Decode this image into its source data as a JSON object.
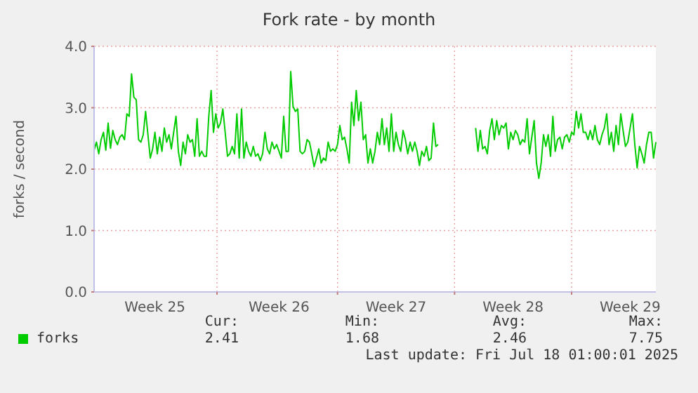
{
  "chart_data": {
    "type": "line",
    "title": "Fork rate - by month",
    "ylabel": "forks / second",
    "categories": [
      null,
      null,
      null,
      null,
      null,
      null,
      null,
      null,
      null,
      null,
      null,
      null,
      null,
      null,
      null,
      null,
      null,
      null,
      null,
      null,
      null,
      null,
      null,
      null,
      null,
      null,
      "Week 25",
      null,
      null,
      null,
      null,
      null,
      null,
      null,
      null,
      null,
      null,
      null,
      null,
      null,
      null,
      null,
      null,
      null,
      null,
      null,
      null,
      null,
      null,
      null,
      null,
      null,
      null,
      null,
      null,
      null,
      null,
      null,
      null,
      null,
      null,
      null,
      null,
      null,
      null,
      null,
      null,
      null,
      null,
      null,
      null,
      null,
      null,
      null,
      null,
      null,
      null,
      null,
      null,
      "Week 26",
      null,
      null,
      null,
      null,
      null,
      null,
      null,
      null,
      null,
      null,
      null,
      null,
      null,
      null,
      null,
      null,
      null,
      null,
      null,
      null,
      null,
      null,
      null,
      null,
      null,
      null,
      null,
      null,
      null,
      null,
      null,
      null,
      null,
      null,
      null,
      null,
      null,
      null,
      null,
      null,
      null,
      null,
      null,
      null,
      null,
      null,
      null,
      null,
      null,
      "Week 27",
      null,
      null,
      null,
      null,
      null,
      null,
      null,
      null,
      null,
      null,
      null,
      null,
      null,
      null,
      null,
      null,
      null,
      null,
      null,
      null,
      null,
      null,
      null,
      null,
      null,
      null,
      null,
      null,
      null,
      null,
      null,
      null,
      null,
      null,
      null,
      null,
      null,
      null,
      null,
      null,
      null,
      null,
      null,
      null,
      null,
      null,
      null,
      null,
      null,
      "Week 28",
      null,
      null,
      null,
      null,
      null,
      null,
      null,
      null,
      null,
      null,
      null,
      null,
      null,
      null,
      null,
      null,
      null,
      null,
      null,
      null,
      null,
      null,
      null,
      null,
      null,
      null,
      null,
      null,
      null,
      null,
      null,
      null,
      null,
      null,
      null,
      null,
      null,
      null,
      null,
      null,
      null,
      null,
      null,
      null,
      null,
      null,
      null,
      null,
      null,
      "Week 29",
      null,
      null,
      null,
      null,
      null,
      null,
      null,
      null,
      null,
      null,
      null
    ],
    "series": [
      {
        "name": "forks",
        "color": "#00cc00",
        "values": [
          2.31,
          2.44,
          2.25,
          2.48,
          2.6,
          2.31,
          2.75,
          2.34,
          2.63,
          2.48,
          2.4,
          2.52,
          2.56,
          2.48,
          2.9,
          2.86,
          3.55,
          3.17,
          3.13,
          2.48,
          2.44,
          2.56,
          2.94,
          2.56,
          2.18,
          2.33,
          2.6,
          2.25,
          2.52,
          2.29,
          2.67,
          2.44,
          2.56,
          2.33,
          2.6,
          2.86,
          2.29,
          2.06,
          2.44,
          2.25,
          2.56,
          2.44,
          2.48,
          2.21,
          2.82,
          2.21,
          2.29,
          2.21,
          2.21,
          2.86,
          3.28,
          2.6,
          2.9,
          2.67,
          2.75,
          2.98,
          2.6,
          2.21,
          2.25,
          2.37,
          2.25,
          2.9,
          2.18,
          2.98,
          2.18,
          2.44,
          2.29,
          2.21,
          2.37,
          2.21,
          2.25,
          2.14,
          2.25,
          2.6,
          2.33,
          2.25,
          2.44,
          2.33,
          2.4,
          2.29,
          2.18,
          2.86,
          2.29,
          2.29,
          3.59,
          3.02,
          2.94,
          2.98,
          2.29,
          2.25,
          2.29,
          2.48,
          2.44,
          2.25,
          2.04,
          2.18,
          2.33,
          2.1,
          2.18,
          2.14,
          2.44,
          2.29,
          2.33,
          2.29,
          2.4,
          2.71,
          2.48,
          2.52,
          2.33,
          2.1,
          3.09,
          2.71,
          3.28,
          2.79,
          3.09,
          2.48,
          2.56,
          2.1,
          2.33,
          2.1,
          2.29,
          2.6,
          2.4,
          2.82,
          2.4,
          2.67,
          2.29,
          2.9,
          2.29,
          2.6,
          2.4,
          2.29,
          2.63,
          2.48,
          2.25,
          2.44,
          2.29,
          2.44,
          2.29,
          2.06,
          2.29,
          2.21,
          2.37,
          2.14,
          2.18,
          2.75,
          2.37,
          2.4,
          null,
          null,
          null,
          null,
          null,
          null,
          null,
          null,
          null,
          null,
          null,
          null,
          null,
          null,
          null,
          2.67,
          2.29,
          2.63,
          2.33,
          2.37,
          2.25,
          2.63,
          2.82,
          2.48,
          2.79,
          2.56,
          2.71,
          2.67,
          2.75,
          2.33,
          2.6,
          2.48,
          2.63,
          2.56,
          2.4,
          2.48,
          2.44,
          2.82,
          2.25,
          2.52,
          2.79,
          2.1,
          1.85,
          2.1,
          2.56,
          2.37,
          2.56,
          2.21,
          2.86,
          2.29,
          2.48,
          2.52,
          2.33,
          2.52,
          2.56,
          2.44,
          2.6,
          2.56,
          2.94,
          2.67,
          2.9,
          2.6,
          2.6,
          2.48,
          2.63,
          2.48,
          2.71,
          2.48,
          2.4,
          2.56,
          2.67,
          2.9,
          2.4,
          2.6,
          2.29,
          2.71,
          2.4,
          2.9,
          2.63,
          2.37,
          2.44,
          2.67,
          2.9,
          2.4,
          2.02,
          2.37,
          2.25,
          2.1,
          2.4,
          2.6,
          2.6,
          2.18,
          2.44
        ]
      }
    ],
    "ylim": [
      0,
      4
    ],
    "yticks": [
      {
        "value": 0,
        "label": "0.0"
      },
      {
        "value": 1,
        "label": "1.0"
      },
      {
        "value": 2,
        "label": "2.0"
      },
      {
        "value": 3,
        "label": "3.0"
      },
      {
        "value": 4,
        "label": "4.0"
      }
    ],
    "grid": true,
    "legend": "bottom",
    "marker": "none",
    "line_style": "solid",
    "annotations": [
      "Cur:",
      "Min:",
      "Avg:",
      "Max:",
      "2.41",
      "1.68",
      "2.46",
      "7.75",
      "Last update: Fri Jul 18 01:00:01 2025"
    ]
  }
}
